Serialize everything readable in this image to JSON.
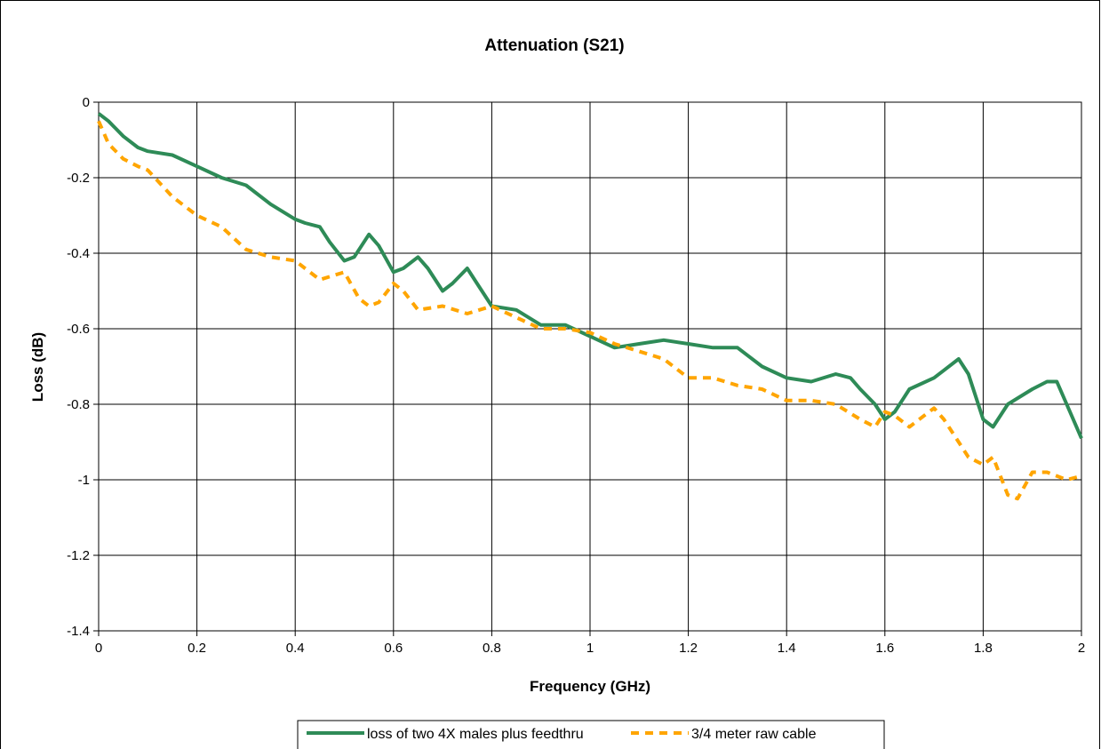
{
  "chart_data": {
    "type": "line",
    "title": "Attenuation (S21)",
    "xlabel": "Frequency (GHz)",
    "ylabel": "Loss (dB)",
    "xlim": [
      0,
      2
    ],
    "ylim": [
      -1.4,
      0
    ],
    "x_ticks": [
      "0",
      "0.2",
      "0.4",
      "0.6",
      "0.8",
      "1",
      "1.2",
      "1.4",
      "1.6",
      "1.8",
      "2"
    ],
    "y_ticks": [
      "0",
      "-0.2",
      "-0.4",
      "-0.6",
      "-0.8",
      "-1",
      "-1.2",
      "-1.4"
    ],
    "grid": true,
    "legend_position": "bottom",
    "series": [
      {
        "name": "loss of two 4X males plus feedthru",
        "color": "#2e8b57",
        "style": "solid",
        "x": [
          0,
          0.02,
          0.05,
          0.08,
          0.1,
          0.15,
          0.2,
          0.25,
          0.3,
          0.35,
          0.4,
          0.42,
          0.45,
          0.47,
          0.5,
          0.52,
          0.55,
          0.57,
          0.6,
          0.62,
          0.65,
          0.67,
          0.7,
          0.72,
          0.75,
          0.77,
          0.8,
          0.85,
          0.9,
          0.95,
          1.0,
          1.05,
          1.1,
          1.15,
          1.2,
          1.25,
          1.3,
          1.35,
          1.4,
          1.45,
          1.5,
          1.53,
          1.55,
          1.58,
          1.6,
          1.62,
          1.65,
          1.7,
          1.72,
          1.75,
          1.77,
          1.8,
          1.82,
          1.85,
          1.9,
          1.93,
          1.95,
          1.97,
          2.0
        ],
        "y": [
          -0.03,
          -0.05,
          -0.09,
          -0.12,
          -0.13,
          -0.14,
          -0.17,
          -0.2,
          -0.22,
          -0.27,
          -0.31,
          -0.32,
          -0.33,
          -0.37,
          -0.42,
          -0.41,
          -0.35,
          -0.38,
          -0.45,
          -0.44,
          -0.41,
          -0.44,
          -0.5,
          -0.48,
          -0.44,
          -0.48,
          -0.54,
          -0.55,
          -0.59,
          -0.59,
          -0.62,
          -0.65,
          -0.64,
          -0.63,
          -0.64,
          -0.65,
          -0.65,
          -0.7,
          -0.73,
          -0.74,
          -0.72,
          -0.73,
          -0.76,
          -0.8,
          -0.84,
          -0.82,
          -0.76,
          -0.73,
          -0.71,
          -0.68,
          -0.72,
          -0.84,
          -0.86,
          -0.8,
          -0.76,
          -0.74,
          -0.74,
          -0.8,
          -0.89
        ]
      },
      {
        "name": "3/4 meter raw cable",
        "color": "#ffa500",
        "style": "dashed",
        "x": [
          0,
          0.02,
          0.05,
          0.08,
          0.1,
          0.15,
          0.2,
          0.25,
          0.3,
          0.35,
          0.4,
          0.45,
          0.5,
          0.53,
          0.55,
          0.57,
          0.6,
          0.62,
          0.65,
          0.7,
          0.75,
          0.8,
          0.85,
          0.9,
          0.95,
          1.0,
          1.05,
          1.1,
          1.15,
          1.2,
          1.25,
          1.3,
          1.35,
          1.4,
          1.45,
          1.5,
          1.55,
          1.58,
          1.6,
          1.62,
          1.65,
          1.7,
          1.72,
          1.75,
          1.77,
          1.8,
          1.82,
          1.85,
          1.87,
          1.9,
          1.93,
          1.97,
          2.0
        ],
        "y": [
          -0.05,
          -0.11,
          -0.15,
          -0.17,
          -0.18,
          -0.25,
          -0.3,
          -0.33,
          -0.39,
          -0.41,
          -0.42,
          -0.47,
          -0.45,
          -0.52,
          -0.54,
          -0.53,
          -0.48,
          -0.5,
          -0.55,
          -0.54,
          -0.56,
          -0.54,
          -0.57,
          -0.6,
          -0.6,
          -0.61,
          -0.64,
          -0.66,
          -0.68,
          -0.73,
          -0.73,
          -0.75,
          -0.76,
          -0.79,
          -0.79,
          -0.8,
          -0.84,
          -0.86,
          -0.82,
          -0.83,
          -0.86,
          -0.81,
          -0.84,
          -0.9,
          -0.94,
          -0.96,
          -0.94,
          -1.04,
          -1.05,
          -0.98,
          -0.98,
          -1.0,
          -0.99
        ]
      }
    ]
  }
}
